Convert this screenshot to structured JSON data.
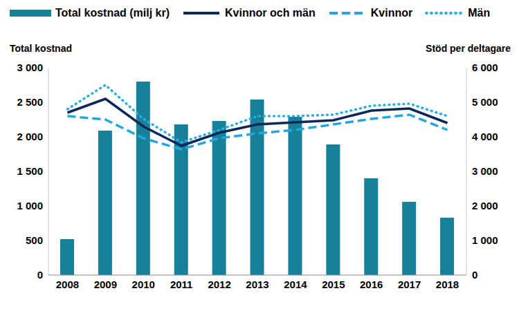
{
  "chart_data": {
    "type": "bar",
    "y_label": "Total kostnad",
    "y2_label": "Stöd per deltagare",
    "categories": [
      "2008",
      "2009",
      "2010",
      "2011",
      "2012",
      "2013",
      "2014",
      "2015",
      "2016",
      "2017",
      "2018"
    ],
    "series": [
      {
        "name": "Total kostnad (milj kr)",
        "type": "bar",
        "color": "#17819b",
        "values": [
          520,
          2090,
          2800,
          2180,
          2230,
          2540,
          2290,
          1890,
          1400,
          1060,
          830
        ]
      },
      {
        "name": "Kvinnor och män",
        "type": "line",
        "axis": "y2",
        "color": "#0c2858",
        "line_style": "solid",
        "values": [
          4700,
          5100,
          4300,
          3740,
          4120,
          4360,
          4420,
          4480,
          4760,
          4820,
          4400
        ]
      },
      {
        "name": "Kvinnor",
        "type": "line",
        "axis": "y2",
        "color": "#25a6de",
        "line_style": "dashed",
        "values": [
          4600,
          4500,
          3960,
          3640,
          3960,
          4100,
          4200,
          4360,
          4520,
          4640,
          4200
        ]
      },
      {
        "name": "Män",
        "type": "line",
        "axis": "y2",
        "color": "#2aaee3",
        "line_style": "dotted",
        "values": [
          4800,
          5500,
          4520,
          3840,
          4200,
          4600,
          4600,
          4640,
          4900,
          4960,
          4600
        ]
      }
    ],
    "ylim": [
      0,
      3000
    ],
    "yticks": [
      0,
      500,
      {
        "value": 1000,
        "label": "1 000"
      },
      {
        "value": 1500,
        "label": "1 500"
      },
      {
        "value": 2000,
        "label": "2 000"
      },
      {
        "value": 2500,
        "label": "2 500"
      },
      {
        "value": 3000,
        "label": "3 000"
      }
    ],
    "y2lim": [
      0,
      6000
    ],
    "y2ticks": [
      0,
      {
        "value": 1000,
        "label": "1 000"
      },
      {
        "value": 2000,
        "label": "2 000"
      },
      {
        "value": 3000,
        "label": "3 000"
      },
      {
        "value": 4000,
        "label": "4 000"
      },
      {
        "value": 5000,
        "label": "5 000"
      },
      {
        "value": 6000,
        "label": "6 000"
      }
    ],
    "grid": false,
    "legend": "top"
  }
}
